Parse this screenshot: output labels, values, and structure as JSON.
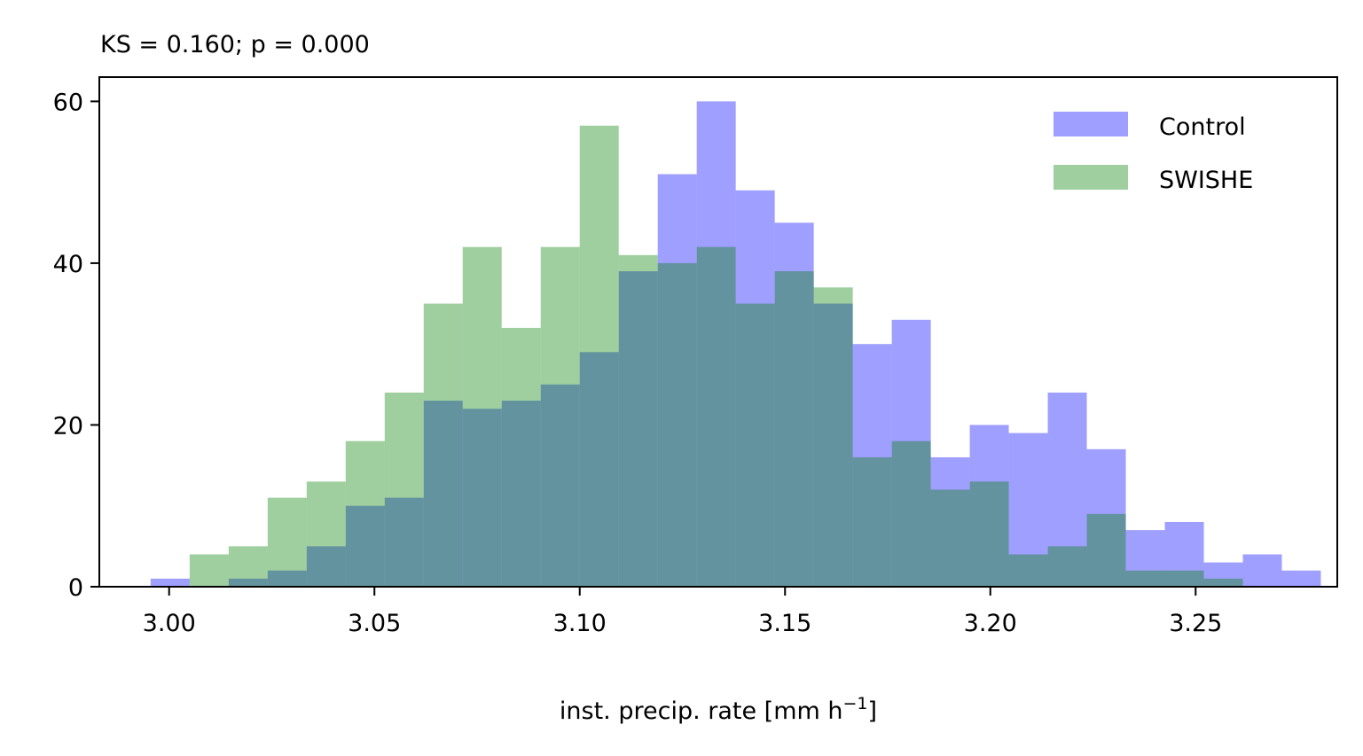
{
  "chart_data": {
    "type": "histogram",
    "title": "KS = 0.160; p = 0.000",
    "xlabel": "inst. precip. rate [mm h",
    "xlabel_superscript": "−1",
    "xlabel_suffix": "]",
    "ylabel": "",
    "xlim": [
      2.983,
      3.2845
    ],
    "ylim": [
      0,
      63
    ],
    "xticks": [
      3.0,
      3.05,
      3.1,
      3.15,
      3.2,
      3.25
    ],
    "xtick_labels": [
      "3.00",
      "3.05",
      "3.10",
      "3.15",
      "3.20",
      "3.25"
    ],
    "yticks": [
      0,
      20,
      40,
      60
    ],
    "ytick_labels": [
      "0",
      "20",
      "40",
      "60"
    ],
    "legend_position": "top-right",
    "grid": false,
    "colors": {
      "Control": "#0000ff",
      "SWISHE": "#008000",
      "overlap_alpha": 0.375
    },
    "series": [
      {
        "name": "Control",
        "bin_start": 2.9955,
        "bin_width": 0.0095,
        "counts": [
          1,
          0,
          1,
          2,
          5,
          10,
          11,
          23,
          22,
          23,
          25,
          29,
          39,
          51,
          60,
          49,
          45,
          35,
          30,
          33,
          16,
          20,
          19,
          24,
          17,
          7,
          8,
          3,
          4,
          2
        ]
      },
      {
        "name": "SWISHE",
        "bin_start": 3.005,
        "bin_width": 0.0095,
        "counts": [
          4,
          5,
          11,
          13,
          18,
          24,
          35,
          42,
          32,
          42,
          57,
          41,
          40,
          42,
          35,
          39,
          37,
          16,
          18,
          12,
          13,
          4,
          5,
          9,
          2,
          2,
          1
        ]
      }
    ]
  }
}
